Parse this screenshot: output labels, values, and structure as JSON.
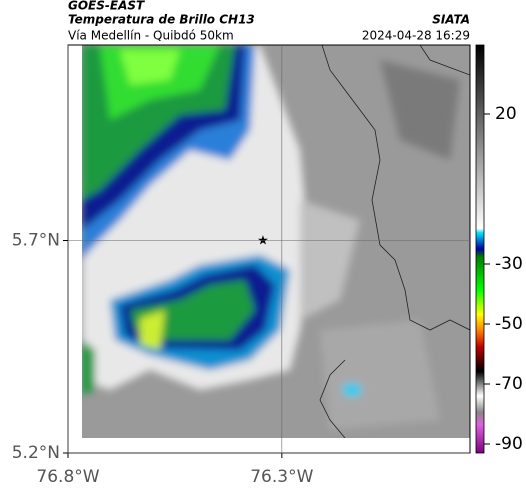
{
  "header": {
    "source": "GOES-EAST",
    "title": "Temperatura de Brillo CH13",
    "subtitle": "Vía Medellín - Quibdó 50km",
    "org": "SIATA",
    "datetime": "2024-04-28 16:29"
  },
  "map": {
    "xlim": [
      -76.8,
      -75.86
    ],
    "ylim": [
      5.2,
      6.16
    ],
    "xticks": [
      {
        "value": -76.8,
        "label": "76.8°W"
      },
      {
        "value": -76.3,
        "label": "76.3°W"
      }
    ],
    "yticks": [
      {
        "value": 5.2,
        "label": "5.2°N"
      },
      {
        "value": 5.7,
        "label": "5.7°N"
      }
    ]
  },
  "colorbar": {
    "lim": [
      -93,
      43
    ],
    "ticks": [
      20,
      -30,
      -50,
      -70,
      -90
    ]
  }
}
